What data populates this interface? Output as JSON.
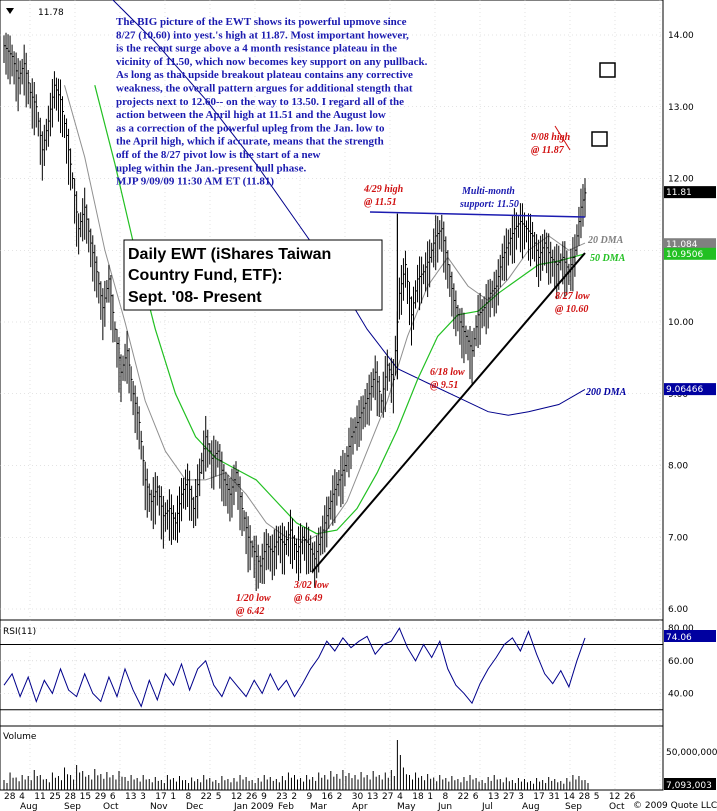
{
  "chart_data": {
    "type": "candlestick",
    "symbol_price": "11.78",
    "commentary": [
      "The BIG picture of the EWT shows its powerful upmove since",
      "8/27 (10.60) into yest.'s high at 11.87. Most important however,",
      "is the recent surge above a 4 month resistance plateau in the",
      "vicinity of 11.50, which now becomes key support on any pullback.",
      "As long as that upside breakout plateau contains any corrective",
      "weakness, the overall pattern argues for additional stength that",
      "projects next to 12.60-- on the way to 13.50.  I regard all of the",
      "action between the April high at 11.51 and the August low",
      "as a correction of the powerful upleg from the Jan. low to",
      "the April high, which if accurate, means that the strength",
      "off of the 8/27 pivot low is the start of a new",
      "upleg within the Jan.-present bull phase.",
      "MJP  9/09/09  11:30 AM ET  (11.81)"
    ],
    "title_lines": [
      "Daily EWT (iShares Taiwan",
      "Country Fund, ETF):",
      "Sept. '08- Present"
    ],
    "price_axis": {
      "min": 5.8,
      "max": 14.6,
      "ticks": [
        "14.00",
        "13.00",
        "12.00",
        "11.00",
        "10.00",
        "9.00",
        "8.00",
        "7.00",
        "6.00"
      ]
    },
    "price_tags": [
      {
        "value": 11.81,
        "label": "11.81",
        "color": "#000000"
      },
      {
        "value": 11.084,
        "label": "11.084",
        "color": "#808080"
      },
      {
        "value": 10.9506,
        "label": "10.9506",
        "color": "#22c022"
      },
      {
        "value": 9.06466,
        "label": "9.06466",
        "color": "#0000a0"
      }
    ],
    "annotations": [
      {
        "text": "9/08 high",
        "text2": "@ 11.87",
        "style": "red"
      },
      {
        "text": "4/29 high",
        "text2": "@ 11.51",
        "style": "red"
      },
      {
        "text": "Multi-month",
        "text2": "support: 11.50",
        "style": "blue"
      },
      {
        "text": "8/27 low",
        "text2": "@ 10.60",
        "style": "red"
      },
      {
        "text": "6/18 low",
        "text2": "@ 9.51",
        "style": "red"
      },
      {
        "text": "1/20 low",
        "text2": "@ 6.42",
        "style": "red"
      },
      {
        "text": "3/02 low",
        "text2": "@ 6.49",
        "style": "red"
      }
    ],
    "ma_labels": [
      {
        "text": "20 DMA",
        "color": "#808080"
      },
      {
        "text": "50 DMA",
        "color": "#22c022"
      },
      {
        "text": "200 DMA",
        "color": "#0000a0"
      }
    ],
    "rsi": {
      "label": "RSI(11)",
      "value": "74.06",
      "min": 20,
      "max": 85,
      "ticks": [
        "80.00",
        "60.00",
        "40.00"
      ],
      "levels": [
        70,
        30
      ]
    },
    "volume": {
      "label": "Volume",
      "ticks": [
        "50,000,000"
      ],
      "last": "7,093,003"
    },
    "x_axis": {
      "day_labels": [
        "28",
        "4",
        "11",
        "25",
        "28",
        "15",
        "29",
        "6",
        "13",
        "3",
        "17",
        "1",
        "8",
        "22",
        "5",
        "12",
        "26",
        "9",
        "23",
        "2",
        "9",
        "16",
        "2",
        "30",
        "13",
        "27",
        "4",
        "18",
        "1",
        "8",
        "22",
        "6",
        "13",
        "27",
        "3",
        "17",
        "31",
        "14",
        "28",
        "5",
        "12",
        "26"
      ],
      "month_labels": [
        "Aug",
        "Sep",
        "Oct",
        "Nov",
        "Dec",
        "Jan 2009",
        "Feb",
        "Mar",
        "Apr",
        "May",
        "Jun",
        "Jul",
        "Aug",
        "Sep",
        "Oct"
      ],
      "credit": "© 2009 Quote LLC"
    },
    "price_path": [
      [
        0,
        13.85
      ],
      [
        8,
        13.7
      ],
      [
        14,
        13.4
      ],
      [
        20,
        13.6
      ],
      [
        26,
        13.2
      ],
      [
        32,
        13.0
      ],
      [
        38,
        12.4
      ],
      [
        44,
        12.8
      ],
      [
        50,
        13.3
      ],
      [
        56,
        13.1
      ],
      [
        62,
        12.6
      ],
      [
        68,
        12.0
      ],
      [
        74,
        11.3
      ],
      [
        80,
        11.6
      ],
      [
        86,
        11.1
      ],
      [
        92,
        10.7
      ],
      [
        98,
        10.2
      ],
      [
        104,
        10.6
      ],
      [
        110,
        9.9
      ],
      [
        116,
        9.3
      ],
      [
        122,
        9.6
      ],
      [
        128,
        9.0
      ],
      [
        134,
        8.6
      ],
      [
        140,
        7.8
      ],
      [
        146,
        7.5
      ],
      [
        152,
        7.7
      ],
      [
        158,
        7.3
      ],
      [
        164,
        7.4
      ],
      [
        170,
        7.2
      ],
      [
        176,
        7.6
      ],
      [
        182,
        7.8
      ],
      [
        188,
        7.4
      ],
      [
        194,
        7.9
      ],
      [
        200,
        8.4
      ],
      [
        206,
        8.1
      ],
      [
        212,
        8.2
      ],
      [
        218,
        7.8
      ],
      [
        224,
        7.6
      ],
      [
        230,
        7.9
      ],
      [
        236,
        7.4
      ],
      [
        242,
        7.0
      ],
      [
        248,
        6.8
      ],
      [
        254,
        6.6
      ],
      [
        260,
        6.9
      ],
      [
        266,
        6.8
      ],
      [
        272,
        7.0
      ],
      [
        278,
        6.9
      ],
      [
        284,
        7.1
      ],
      [
        290,
        6.8
      ],
      [
        296,
        7.0
      ],
      [
        302,
        6.9
      ],
      [
        308,
        6.7
      ],
      [
        314,
        7.0
      ],
      [
        320,
        7.3
      ],
      [
        326,
        7.6
      ],
      [
        332,
        7.8
      ],
      [
        338,
        8.0
      ],
      [
        344,
        8.4
      ],
      [
        350,
        8.6
      ],
      [
        356,
        8.8
      ],
      [
        362,
        9.0
      ],
      [
        368,
        9.3
      ],
      [
        374,
        8.9
      ],
      [
        380,
        9.4
      ],
      [
        386,
        9.2
      ],
      [
        392,
        10.4
      ],
      [
        398,
        10.8
      ],
      [
        404,
        10.1
      ],
      [
        410,
        10.6
      ],
      [
        416,
        10.7
      ],
      [
        422,
        10.9
      ],
      [
        428,
        11.2
      ],
      [
        434,
        11.3
      ],
      [
        440,
        10.8
      ],
      [
        446,
        10.3
      ],
      [
        452,
        10.0
      ],
      [
        458,
        9.8
      ],
      [
        464,
        9.6
      ],
      [
        470,
        10.1
      ],
      [
        476,
        10.2
      ],
      [
        482,
        10.4
      ],
      [
        488,
        10.5
      ],
      [
        494,
        10.9
      ],
      [
        500,
        11.1
      ],
      [
        506,
        11.3
      ],
      [
        512,
        11.4
      ],
      [
        518,
        11.3
      ],
      [
        524,
        11.2
      ],
      [
        530,
        10.9
      ],
      [
        536,
        11.1
      ],
      [
        542,
        10.9
      ],
      [
        548,
        10.8
      ],
      [
        554,
        10.9
      ],
      [
        560,
        10.7
      ],
      [
        566,
        11.0
      ],
      [
        572,
        11.6
      ],
      [
        576,
        11.8
      ]
    ],
    "ma20_path": [
      [
        60,
        13.3
      ],
      [
        80,
        12.3
      ],
      [
        100,
        11.0
      ],
      [
        120,
        10.0
      ],
      [
        140,
        8.9
      ],
      [
        160,
        8.2
      ],
      [
        180,
        7.8
      ],
      [
        200,
        7.8
      ],
      [
        220,
        7.9
      ],
      [
        240,
        7.6
      ],
      [
        260,
        7.2
      ],
      [
        280,
        7.0
      ],
      [
        300,
        6.95
      ],
      [
        320,
        7.1
      ],
      [
        340,
        7.5
      ],
      [
        360,
        8.2
      ],
      [
        380,
        8.9
      ],
      [
        400,
        9.8
      ],
      [
        420,
        10.5
      ],
      [
        440,
        10.9
      ],
      [
        460,
        10.5
      ],
      [
        480,
        10.3
      ],
      [
        500,
        10.6
      ],
      [
        520,
        11.0
      ],
      [
        540,
        11.2
      ],
      [
        560,
        11.0
      ],
      [
        576,
        11.1
      ]
    ],
    "ma50_path": [
      [
        90,
        13.3
      ],
      [
        110,
        12.2
      ],
      [
        130,
        11.0
      ],
      [
        150,
        9.9
      ],
      [
        170,
        9.0
      ],
      [
        190,
        8.4
      ],
      [
        210,
        8.1
      ],
      [
        230,
        7.95
      ],
      [
        250,
        7.8
      ],
      [
        270,
        7.5
      ],
      [
        290,
        7.2
      ],
      [
        310,
        7.05
      ],
      [
        330,
        7.1
      ],
      [
        350,
        7.4
      ],
      [
        370,
        7.9
      ],
      [
        390,
        8.5
      ],
      [
        410,
        9.2
      ],
      [
        430,
        9.8
      ],
      [
        450,
        10.1
      ],
      [
        470,
        10.15
      ],
      [
        490,
        10.4
      ],
      [
        510,
        10.6
      ],
      [
        530,
        10.8
      ],
      [
        550,
        10.85
      ],
      [
        576,
        10.95
      ]
    ],
    "ma200_path": [
      [
        100,
        14.6
      ],
      [
        150,
        13.9
      ],
      [
        200,
        13.1
      ],
      [
        250,
        12.2
      ],
      [
        290,
        11.4
      ],
      [
        330,
        10.6
      ],
      [
        360,
        9.9
      ],
      [
        390,
        9.35
      ],
      [
        420,
        9.15
      ],
      [
        450,
        8.95
      ],
      [
        480,
        8.75
      ],
      [
        500,
        8.7
      ],
      [
        520,
        8.75
      ],
      [
        550,
        8.85
      ],
      [
        576,
        9.06
      ]
    ],
    "rsi_path": [
      [
        0,
        45
      ],
      [
        8,
        52
      ],
      [
        16,
        38
      ],
      [
        24,
        50
      ],
      [
        32,
        35
      ],
      [
        40,
        48
      ],
      [
        48,
        40
      ],
      [
        56,
        55
      ],
      [
        64,
        42
      ],
      [
        72,
        38
      ],
      [
        80,
        52
      ],
      [
        88,
        40
      ],
      [
        96,
        35
      ],
      [
        104,
        50
      ],
      [
        112,
        38
      ],
      [
        120,
        55
      ],
      [
        128,
        42
      ],
      [
        136,
        32
      ],
      [
        144,
        48
      ],
      [
        152,
        36
      ],
      [
        160,
        52
      ],
      [
        168,
        45
      ],
      [
        176,
        58
      ],
      [
        184,
        42
      ],
      [
        192,
        55
      ],
      [
        200,
        60
      ],
      [
        208,
        45
      ],
      [
        216,
        38
      ],
      [
        224,
        50
      ],
      [
        232,
        44
      ],
      [
        240,
        38
      ],
      [
        248,
        48
      ],
      [
        256,
        40
      ],
      [
        264,
        52
      ],
      [
        272,
        42
      ],
      [
        280,
        48
      ],
      [
        288,
        38
      ],
      [
        296,
        46
      ],
      [
        304,
        55
      ],
      [
        312,
        62
      ],
      [
        320,
        72
      ],
      [
        328,
        66
      ],
      [
        336,
        74
      ],
      [
        344,
        68
      ],
      [
        352,
        72
      ],
      [
        360,
        75
      ],
      [
        368,
        64
      ],
      [
        376,
        70
      ],
      [
        384,
        72
      ],
      [
        392,
        80
      ],
      [
        400,
        68
      ],
      [
        408,
        60
      ],
      [
        416,
        70
      ],
      [
        424,
        62
      ],
      [
        432,
        72
      ],
      [
        440,
        55
      ],
      [
        448,
        45
      ],
      [
        456,
        40
      ],
      [
        464,
        34
      ],
      [
        472,
        46
      ],
      [
        480,
        55
      ],
      [
        488,
        62
      ],
      [
        496,
        70
      ],
      [
        504,
        74
      ],
      [
        512,
        66
      ],
      [
        520,
        78
      ],
      [
        528,
        64
      ],
      [
        536,
        52
      ],
      [
        544,
        46
      ],
      [
        552,
        54
      ],
      [
        560,
        44
      ],
      [
        568,
        60
      ],
      [
        576,
        74
      ]
    ],
    "volume_bars": [
      [
        0,
        0.2
      ],
      [
        6,
        0.35
      ],
      [
        12,
        0.25
      ],
      [
        18,
        0.3
      ],
      [
        24,
        0.28
      ],
      [
        30,
        0.4
      ],
      [
        36,
        0.3
      ],
      [
        42,
        0.22
      ],
      [
        48,
        0.35
      ],
      [
        54,
        0.28
      ],
      [
        60,
        0.45
      ],
      [
        66,
        0.3
      ],
      [
        72,
        0.5
      ],
      [
        78,
        0.38
      ],
      [
        84,
        0.3
      ],
      [
        90,
        0.42
      ],
      [
        96,
        0.32
      ],
      [
        102,
        0.36
      ],
      [
        108,
        0.3
      ],
      [
        114,
        0.38
      ],
      [
        120,
        0.26
      ],
      [
        126,
        0.3
      ],
      [
        132,
        0.24
      ],
      [
        138,
        0.3
      ],
      [
        144,
        0.22
      ],
      [
        150,
        0.26
      ],
      [
        156,
        0.2
      ],
      [
        162,
        0.3
      ],
      [
        168,
        0.24
      ],
      [
        174,
        0.28
      ],
      [
        180,
        0.2
      ],
      [
        186,
        0.25
      ],
      [
        192,
        0.22
      ],
      [
        198,
        0.3
      ],
      [
        204,
        0.24
      ],
      [
        210,
        0.2
      ],
      [
        216,
        0.28
      ],
      [
        222,
        0.22
      ],
      [
        228,
        0.24
      ],
      [
        234,
        0.3
      ],
      [
        240,
        0.26
      ],
      [
        246,
        0.2
      ],
      [
        252,
        0.24
      ],
      [
        258,
        0.3
      ],
      [
        264,
        0.26
      ],
      [
        270,
        0.22
      ],
      [
        276,
        0.28
      ],
      [
        282,
        0.35
      ],
      [
        288,
        0.3
      ],
      [
        294,
        0.24
      ],
      [
        300,
        0.3
      ],
      [
        306,
        0.26
      ],
      [
        312,
        0.35
      ],
      [
        318,
        0.3
      ],
      [
        324,
        0.38
      ],
      [
        330,
        0.32
      ],
      [
        336,
        0.4
      ],
      [
        342,
        0.34
      ],
      [
        348,
        0.3
      ],
      [
        354,
        0.36
      ],
      [
        360,
        0.3
      ],
      [
        366,
        0.38
      ],
      [
        372,
        0.3
      ],
      [
        378,
        0.35
      ],
      [
        384,
        0.4
      ],
      [
        390,
        1.0
      ],
      [
        396,
        0.45
      ],
      [
        402,
        0.3
      ],
      [
        408,
        0.35
      ],
      [
        414,
        0.28
      ],
      [
        420,
        0.32
      ],
      [
        426,
        0.25
      ],
      [
        432,
        0.3
      ],
      [
        438,
        0.24
      ],
      [
        444,
        0.28
      ],
      [
        450,
        0.22
      ],
      [
        456,
        0.26
      ],
      [
        462,
        0.3
      ],
      [
        468,
        0.24
      ],
      [
        474,
        0.2
      ],
      [
        480,
        0.26
      ],
      [
        486,
        0.3
      ],
      [
        492,
        0.22
      ],
      [
        498,
        0.25
      ],
      [
        504,
        0.2
      ],
      [
        510,
        0.24
      ],
      [
        516,
        0.22
      ],
      [
        522,
        0.18
      ],
      [
        528,
        0.24
      ],
      [
        534,
        0.2
      ],
      [
        540,
        0.26
      ],
      [
        546,
        0.22
      ],
      [
        552,
        0.18
      ],
      [
        558,
        0.24
      ],
      [
        564,
        0.3
      ],
      [
        570,
        0.28
      ],
      [
        576,
        0.2
      ]
    ]
  }
}
